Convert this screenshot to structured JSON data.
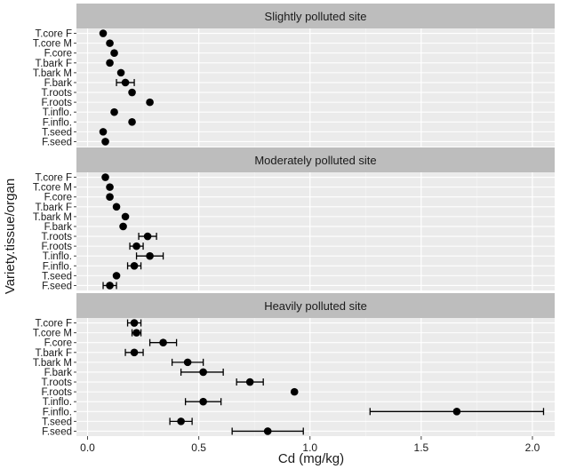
{
  "chart_data": {
    "type": "scatter",
    "subtype": "dot-with-error-bars",
    "xlabel": "Cd (mg/kg)",
    "ylabel": "Variety.tissue/organ",
    "xlim": [
      -0.05,
      2.1
    ],
    "x_ticks": [
      0.0,
      0.5,
      1.0,
      1.5,
      2.0
    ],
    "x_tick_labels": [
      "0.0",
      "0.5",
      "1.0",
      "1.5",
      "2.0"
    ],
    "categories": [
      "T.core F",
      "T.core M",
      "F.core",
      "T.bark F",
      "T.bark M",
      "F.bark",
      "T.roots",
      "F.roots",
      "T.inflo.",
      "F.inflo.",
      "T.seed",
      "F.seed"
    ],
    "grid": true,
    "panel_background": "#ebebeb",
    "strip_background": "#bdbdbd",
    "point_color": "#000000",
    "panels": [
      {
        "title": "Slightly polluted site",
        "points": [
          {
            "category": "T.core F",
            "value": 0.07,
            "low": 0.07,
            "high": 0.07
          },
          {
            "category": "T.core M",
            "value": 0.1,
            "low": 0.1,
            "high": 0.1
          },
          {
            "category": "F.core",
            "value": 0.12,
            "low": 0.12,
            "high": 0.12
          },
          {
            "category": "T.bark F",
            "value": 0.1,
            "low": 0.1,
            "high": 0.1
          },
          {
            "category": "T.bark M",
            "value": 0.15,
            "low": 0.15,
            "high": 0.15
          },
          {
            "category": "F.bark",
            "value": 0.17,
            "low": 0.13,
            "high": 0.21
          },
          {
            "category": "T.roots",
            "value": 0.2,
            "low": 0.2,
            "high": 0.2
          },
          {
            "category": "F.roots",
            "value": 0.28,
            "low": 0.28,
            "high": 0.28
          },
          {
            "category": "T.inflo.",
            "value": 0.12,
            "low": 0.12,
            "high": 0.12
          },
          {
            "category": "F.inflo.",
            "value": 0.2,
            "low": 0.2,
            "high": 0.2
          },
          {
            "category": "T.seed",
            "value": 0.07,
            "low": 0.07,
            "high": 0.07
          },
          {
            "category": "F.seed",
            "value": 0.08,
            "low": 0.08,
            "high": 0.08
          }
        ]
      },
      {
        "title": "Moderately polluted site",
        "points": [
          {
            "category": "T.core F",
            "value": 0.08,
            "low": 0.08,
            "high": 0.08
          },
          {
            "category": "T.core M",
            "value": 0.1,
            "low": 0.1,
            "high": 0.1
          },
          {
            "category": "F.core",
            "value": 0.1,
            "low": 0.1,
            "high": 0.1
          },
          {
            "category": "T.bark F",
            "value": 0.13,
            "low": 0.13,
            "high": 0.13
          },
          {
            "category": "T.bark M",
            "value": 0.17,
            "low": 0.17,
            "high": 0.17
          },
          {
            "category": "F.bark",
            "value": 0.16,
            "low": 0.16,
            "high": 0.16
          },
          {
            "category": "T.roots",
            "value": 0.27,
            "low": 0.23,
            "high": 0.31
          },
          {
            "category": "F.roots",
            "value": 0.22,
            "low": 0.19,
            "high": 0.25
          },
          {
            "category": "T.inflo.",
            "value": 0.28,
            "low": 0.22,
            "high": 0.34
          },
          {
            "category": "F.inflo.",
            "value": 0.21,
            "low": 0.18,
            "high": 0.24
          },
          {
            "category": "T.seed",
            "value": 0.13,
            "low": 0.13,
            "high": 0.13
          },
          {
            "category": "F.seed",
            "value": 0.1,
            "low": 0.07,
            "high": 0.13
          }
        ]
      },
      {
        "title": "Heavily polluted site",
        "points": [
          {
            "category": "T.core F",
            "value": 0.21,
            "low": 0.18,
            "high": 0.24
          },
          {
            "category": "T.core M",
            "value": 0.22,
            "low": 0.2,
            "high": 0.24
          },
          {
            "category": "F.core",
            "value": 0.34,
            "low": 0.28,
            "high": 0.4
          },
          {
            "category": "T.bark F",
            "value": 0.21,
            "low": 0.17,
            "high": 0.25
          },
          {
            "category": "T.bark M",
            "value": 0.45,
            "low": 0.38,
            "high": 0.52
          },
          {
            "category": "F.bark",
            "value": 0.52,
            "low": 0.42,
            "high": 0.61
          },
          {
            "category": "T.roots",
            "value": 0.73,
            "low": 0.67,
            "high": 0.79
          },
          {
            "category": "F.roots",
            "value": 0.93,
            "low": 0.93,
            "high": 0.93
          },
          {
            "category": "T.inflo.",
            "value": 0.52,
            "low": 0.44,
            "high": 0.6
          },
          {
            "category": "F.inflo.",
            "value": 1.66,
            "low": 1.27,
            "high": 2.05
          },
          {
            "category": "T.seed",
            "value": 0.42,
            "low": 0.37,
            "high": 0.47
          },
          {
            "category": "F.seed",
            "value": 0.81,
            "low": 0.65,
            "high": 0.97
          }
        ]
      }
    ]
  }
}
